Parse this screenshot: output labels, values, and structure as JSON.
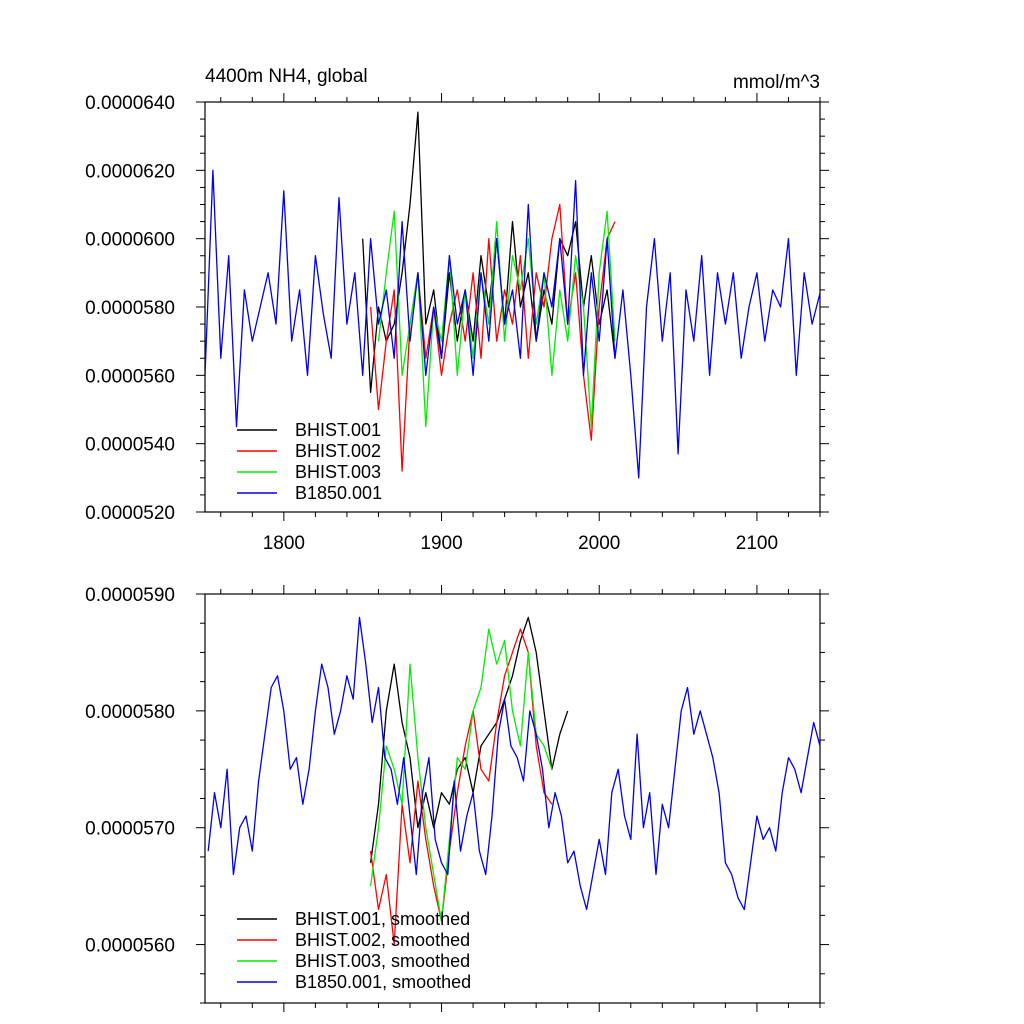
{
  "chart_data": [
    {
      "type": "line",
      "title": "4400m NH4, global",
      "units_label": "mmol/m^3",
      "xlim": [
        1750,
        2140
      ],
      "ylim": [
        5.2e-05,
        6.4e-05
      ],
      "x_ticks": [
        1800,
        1900,
        2000,
        2100
      ],
      "x_tick_labels": [
        "1800",
        "1900",
        "2000",
        "2100"
      ],
      "y_ticks": [
        5.2e-05,
        5.4e-05,
        5.6e-05,
        5.8e-05,
        6e-05,
        6.2e-05,
        6.4e-05
      ],
      "y_tick_labels": [
        "0.0000520",
        "0.0000540",
        "0.0000560",
        "0.0000580",
        "0.0000600",
        "0.0000620",
        "0.0000640"
      ],
      "legend_position": "bottom-left",
      "grid": false,
      "series": [
        {
          "name": "BHIST.001",
          "color": "#000000",
          "x_start": 1850,
          "x_step": 5,
          "values": [
            6e-05,
            5.55e-05,
            5.8e-05,
            5.7e-05,
            5.75e-05,
            5.9e-05,
            6.1e-05,
            6.37e-05,
            5.75e-05,
            5.85e-05,
            5.65e-05,
            5.9e-05,
            5.7e-05,
            5.85e-05,
            5.7e-05,
            5.95e-05,
            5.8e-05,
            6e-05,
            5.75e-05,
            6.05e-05,
            5.8e-05,
            5.9e-05,
            5.7e-05,
            5.85e-05,
            5.75e-05,
            6e-05,
            5.95e-05,
            6.05e-05,
            5.8e-05,
            5.95e-05,
            5.75e-05,
            5.85e-05,
            5.65e-05
          ]
        },
        {
          "name": "BHIST.002",
          "color": "#ff0000",
          "x_start": 1855,
          "x_step": 5,
          "values": [
            5.8e-05,
            5.5e-05,
            5.7e-05,
            5.85e-05,
            5.32e-05,
            5.75e-05,
            5.9e-05,
            5.65e-05,
            5.8e-05,
            5.6e-05,
            5.75e-05,
            5.85e-05,
            5.7e-05,
            5.9e-05,
            5.65e-05,
            6e-05,
            5.7e-05,
            5.85e-05,
            5.75e-05,
            5.95e-05,
            5.65e-05,
            5.9e-05,
            5.8e-05,
            6e-05,
            6.1e-05,
            5.75e-05,
            5.9e-05,
            5.6e-05,
            5.41e-05,
            5.8e-05,
            6e-05,
            6.05e-05
          ]
        },
        {
          "name": "BHIST.003",
          "color": "#00ee00",
          "x_start": 1860,
          "x_step": 5,
          "values": [
            5.7e-05,
            5.9e-05,
            6.08e-05,
            5.6e-05,
            5.75e-05,
            5.9e-05,
            5.45e-05,
            5.8e-05,
            5.7e-05,
            5.95e-05,
            5.6e-05,
            5.85e-05,
            5.65e-05,
            5.9e-05,
            5.75e-05,
            6.05e-05,
            5.7e-05,
            5.95e-05,
            5.85e-05,
            6e-05,
            5.75e-05,
            5.9e-05,
            5.6e-05,
            5.85e-05,
            5.7e-05,
            5.95e-05,
            5.8e-05,
            5.45e-05,
            5.9e-05,
            6.08e-05,
            5.7e-05
          ]
        },
        {
          "name": "B1850.001",
          "color": "#0000ee",
          "x_start": 1750,
          "x_step": 5,
          "values": [
            5.6e-05,
            6.2e-05,
            5.65e-05,
            5.95e-05,
            5.45e-05,
            5.85e-05,
            5.7e-05,
            5.8e-05,
            5.9e-05,
            5.75e-05,
            6.14e-05,
            5.7e-05,
            5.85e-05,
            5.6e-05,
            5.95e-05,
            5.78e-05,
            5.65e-05,
            6.12e-05,
            5.75e-05,
            5.9e-05,
            5.6e-05,
            6e-05,
            5.75e-05,
            5.85e-05,
            5.65e-05,
            6.05e-05,
            5.7e-05,
            5.9e-05,
            5.6e-05,
            5.8e-05,
            5.65e-05,
            5.95e-05,
            5.75e-05,
            5.85e-05,
            5.6e-05,
            5.9e-05,
            5.7e-05,
            6e-05,
            5.75e-05,
            5.85e-05,
            5.65e-05,
            6.1e-05,
            5.7e-05,
            5.9e-05,
            5.8e-05,
            6e-05,
            5.75e-05,
            6.17e-05,
            5.6e-05,
            5.9e-05,
            5.7e-05,
            6e-05,
            5.65e-05,
            5.85e-05,
            5.6e-05,
            5.3e-05,
            5.8e-05,
            6e-05,
            5.7e-05,
            5.9e-05,
            5.37e-05,
            5.85e-05,
            5.7e-05,
            5.95e-05,
            5.6e-05,
            5.9e-05,
            5.75e-05,
            5.9e-05,
            5.65e-05,
            5.8e-05,
            5.9e-05,
            5.7e-05,
            5.85e-05,
            5.8e-05,
            6e-05,
            5.6e-05,
            5.9e-05,
            5.75e-05,
            5.84e-05
          ]
        }
      ]
    },
    {
      "type": "line",
      "title": "",
      "xlim": [
        1750,
        2140
      ],
      "ylim": [
        5.55e-05,
        5.9e-05
      ],
      "x_ticks": [
        1800,
        1900,
        2000,
        2100
      ],
      "x_tick_labels": [],
      "y_ticks": [
        5.6e-05,
        5.7e-05,
        5.8e-05,
        5.9e-05
      ],
      "y_tick_labels": [
        "0.0000560",
        "0.0000570",
        "0.0000580",
        "0.0000590"
      ],
      "legend_position": "bottom-left",
      "grid": false,
      "series": [
        {
          "name": "BHIST.001, smoothed",
          "color": "#000000",
          "x_start": 1855,
          "x_step": 5,
          "values": [
            5.67e-05,
            5.72e-05,
            5.8e-05,
            5.84e-05,
            5.79e-05,
            5.76e-05,
            5.7e-05,
            5.73e-05,
            5.7e-05,
            5.73e-05,
            5.72e-05,
            5.75e-05,
            5.76e-05,
            5.73e-05,
            5.77e-05,
            5.78e-05,
            5.79e-05,
            5.81e-05,
            5.83e-05,
            5.86e-05,
            5.88e-05,
            5.85e-05,
            5.8e-05,
            5.75e-05,
            5.78e-05,
            5.8e-05
          ]
        },
        {
          "name": "BHIST.002, smoothed",
          "color": "#ff0000",
          "x_start": 1855,
          "x_step": 5,
          "values": [
            5.68e-05,
            5.63e-05,
            5.66e-05,
            5.6e-05,
            5.72e-05,
            5.67e-05,
            5.74e-05,
            5.69e-05,
            5.65e-05,
            5.62e-05,
            5.68e-05,
            5.73e-05,
            5.77e-05,
            5.8e-05,
            5.75e-05,
            5.74e-05,
            5.79e-05,
            5.83e-05,
            5.85e-05,
            5.87e-05,
            5.85e-05,
            5.77e-05,
            5.73e-05,
            5.72e-05
          ]
        },
        {
          "name": "BHIST.003, smoothed",
          "color": "#00ee00",
          "x_start": 1855,
          "x_step": 5,
          "values": [
            5.65e-05,
            5.7e-05,
            5.77e-05,
            5.75e-05,
            5.72e-05,
            5.84e-05,
            5.76e-05,
            5.7e-05,
            5.66e-05,
            5.62e-05,
            5.69e-05,
            5.76e-05,
            5.75e-05,
            5.8e-05,
            5.82e-05,
            5.87e-05,
            5.84e-05,
            5.86e-05,
            5.8e-05,
            5.77e-05,
            5.85e-05,
            5.78e-05,
            5.77e-05,
            5.75e-05
          ]
        },
        {
          "name": "B1850.001, smoothed",
          "color": "#0000ee",
          "x_start": 1752,
          "x_step": 4,
          "values": [
            5.68e-05,
            5.73e-05,
            5.7e-05,
            5.75e-05,
            5.66e-05,
            5.7e-05,
            5.71e-05,
            5.68e-05,
            5.74e-05,
            5.78e-05,
            5.82e-05,
            5.83e-05,
            5.8e-05,
            5.75e-05,
            5.76e-05,
            5.72e-05,
            5.75e-05,
            5.8e-05,
            5.84e-05,
            5.82e-05,
            5.78e-05,
            5.8e-05,
            5.83e-05,
            5.81e-05,
            5.88e-05,
            5.84e-05,
            5.79e-05,
            5.82e-05,
            5.76e-05,
            5.75e-05,
            5.72e-05,
            5.76e-05,
            5.71e-05,
            5.66e-05,
            5.73e-05,
            5.76e-05,
            5.69e-05,
            5.67e-05,
            5.66e-05,
            5.74e-05,
            5.68e-05,
            5.71e-05,
            5.73e-05,
            5.68e-05,
            5.66e-05,
            5.71e-05,
            5.78e-05,
            5.81e-05,
            5.77e-05,
            5.76e-05,
            5.74e-05,
            5.8e-05,
            5.78e-05,
            5.75e-05,
            5.7e-05,
            5.73e-05,
            5.71e-05,
            5.67e-05,
            5.68e-05,
            5.65e-05,
            5.63e-05,
            5.66e-05,
            5.69e-05,
            5.66e-05,
            5.73e-05,
            5.75e-05,
            5.71e-05,
            5.69e-05,
            5.78e-05,
            5.7e-05,
            5.73e-05,
            5.66e-05,
            5.72e-05,
            5.7e-05,
            5.75e-05,
            5.8e-05,
            5.82e-05,
            5.78e-05,
            5.8e-05,
            5.78e-05,
            5.76e-05,
            5.73e-05,
            5.67e-05,
            5.66e-05,
            5.64e-05,
            5.63e-05,
            5.67e-05,
            5.71e-05,
            5.69e-05,
            5.7e-05,
            5.68e-05,
            5.73e-05,
            5.76e-05,
            5.75e-05,
            5.73e-05,
            5.76e-05,
            5.79e-05,
            5.77e-05
          ]
        }
      ]
    }
  ]
}
